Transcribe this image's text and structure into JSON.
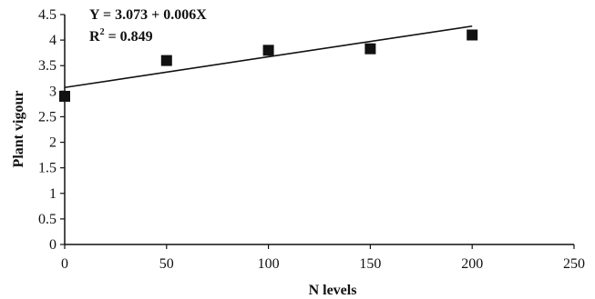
{
  "chart_data": {
    "type": "scatter",
    "xlabel": "N levels",
    "ylabel": "Plant vigour",
    "xlim": [
      0,
      250
    ],
    "ylim": [
      0,
      4.5
    ],
    "x_ticks": [
      "0",
      "50",
      "100",
      "150",
      "200",
      "250"
    ],
    "y_ticks": [
      "0",
      "0.5",
      "1",
      "1.5",
      "2",
      "2.5",
      "3",
      "3.5",
      "4",
      "4.5"
    ],
    "grid": false,
    "legend": "none",
    "series": [
      {
        "marker": "square",
        "color": "#111111",
        "x": [
          0,
          50,
          100,
          150,
          200
        ],
        "y": [
          2.9,
          3.6,
          3.8,
          3.83,
          4.1
        ]
      }
    ],
    "trendline": {
      "type": "linear",
      "intercept": 3.073,
      "slope": 0.006,
      "x_range": [
        0,
        200
      ],
      "color": "#111111"
    },
    "annotations": {
      "equation": "Y = 3.073 + 0.006X",
      "r2_prefix": "R",
      "r2_sup": "2",
      "r2_suffix": " = 0.849"
    }
  }
}
